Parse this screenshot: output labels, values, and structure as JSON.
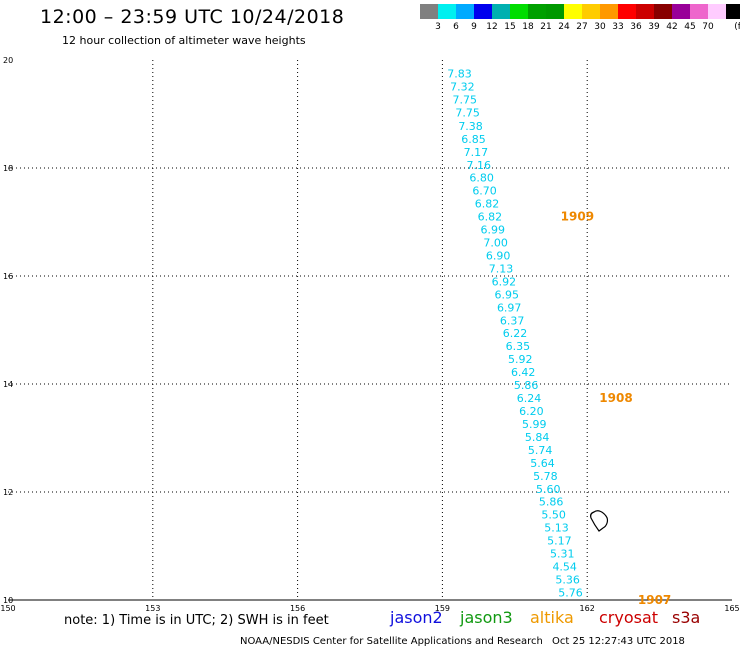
{
  "title": "12:00 – 23:59 UTC 10/24/2018",
  "subtitle": "12 hour collection of altimeter wave heights",
  "colorbar": {
    "labels": [
      "3",
      "6",
      "9",
      "12",
      "15",
      "18",
      "21",
      "24",
      "27",
      "30",
      "33",
      "36",
      "39",
      "42",
      "45",
      "70"
    ],
    "unit": "(ft)",
    "colors": [
      "#808080",
      "#00f0f0",
      "#00aaff",
      "#0000ee",
      "#00b0b0",
      "#00dd00",
      "#00a000",
      "#009900",
      "#ffff00",
      "#ffcc00",
      "#ff9900",
      "#ff0000",
      "#cc0000",
      "#880000",
      "#990099",
      "#ee66cc",
      "#ffccff",
      "#000000"
    ]
  },
  "map_data": {
    "lon_range": [
      150,
      165
    ],
    "lat_range": [
      10,
      20
    ],
    "lon_ticks": [
      "150",
      "153",
      "156",
      "159",
      "162",
      "165"
    ],
    "lat_ticks": [
      "10",
      "12",
      "14",
      "16",
      "18",
      "20"
    ],
    "swh_color": "#00ccee",
    "swh_points": [
      {
        "lon": 159.1,
        "lat": 19.75,
        "v": "7.83"
      },
      {
        "lon": 159.16,
        "lat": 19.51,
        "v": "7.32"
      },
      {
        "lon": 159.21,
        "lat": 19.27,
        "v": "7.75"
      },
      {
        "lon": 159.27,
        "lat": 19.03,
        "v": "7.75"
      },
      {
        "lon": 159.33,
        "lat": 18.78,
        "v": "7.38"
      },
      {
        "lon": 159.39,
        "lat": 18.54,
        "v": "6.85"
      },
      {
        "lon": 159.44,
        "lat": 18.3,
        "v": "7.17"
      },
      {
        "lon": 159.5,
        "lat": 18.06,
        "v": "7.16"
      },
      {
        "lon": 159.56,
        "lat": 17.82,
        "v": "6.80"
      },
      {
        "lon": 159.62,
        "lat": 17.58,
        "v": "6.70"
      },
      {
        "lon": 159.67,
        "lat": 17.34,
        "v": "6.82"
      },
      {
        "lon": 159.73,
        "lat": 17.1,
        "v": "6.82"
      },
      {
        "lon": 159.79,
        "lat": 16.86,
        "v": "6.99"
      },
      {
        "lon": 159.85,
        "lat": 16.62,
        "v": "7.00"
      },
      {
        "lon": 159.9,
        "lat": 16.38,
        "v": "6.90"
      },
      {
        "lon": 159.96,
        "lat": 16.14,
        "v": "7.13"
      },
      {
        "lon": 160.02,
        "lat": 15.9,
        "v": "6.92"
      },
      {
        "lon": 160.08,
        "lat": 15.66,
        "v": "6.95"
      },
      {
        "lon": 160.13,
        "lat": 15.42,
        "v": "6.97"
      },
      {
        "lon": 160.19,
        "lat": 15.18,
        "v": "6.37"
      },
      {
        "lon": 160.25,
        "lat": 14.94,
        "v": "6.22"
      },
      {
        "lon": 160.31,
        "lat": 14.7,
        "v": "6.35"
      },
      {
        "lon": 160.36,
        "lat": 14.46,
        "v": "5.92"
      },
      {
        "lon": 160.42,
        "lat": 14.22,
        "v": "6.42"
      },
      {
        "lon": 160.48,
        "lat": 13.98,
        "v": "5.86"
      },
      {
        "lon": 160.54,
        "lat": 13.74,
        "v": "6.24"
      },
      {
        "lon": 160.59,
        "lat": 13.5,
        "v": "6.20"
      },
      {
        "lon": 160.65,
        "lat": 13.26,
        "v": "5.99"
      },
      {
        "lon": 160.71,
        "lat": 13.02,
        "v": "5.84"
      },
      {
        "lon": 160.77,
        "lat": 12.78,
        "v": "5.74"
      },
      {
        "lon": 160.82,
        "lat": 12.54,
        "v": "5.64"
      },
      {
        "lon": 160.88,
        "lat": 12.3,
        "v": "5.78"
      },
      {
        "lon": 160.94,
        "lat": 12.06,
        "v": "5.60"
      },
      {
        "lon": 161.0,
        "lat": 11.82,
        "v": "5.86"
      },
      {
        "lon": 161.05,
        "lat": 11.58,
        "v": "5.50"
      },
      {
        "lon": 161.11,
        "lat": 11.34,
        "v": "5.13"
      },
      {
        "lon": 161.17,
        "lat": 11.1,
        "v": "5.17"
      },
      {
        "lon": 161.23,
        "lat": 10.86,
        "v": "5.31"
      },
      {
        "lon": 161.28,
        "lat": 10.62,
        "v": "4.54"
      },
      {
        "lon": 161.34,
        "lat": 10.38,
        "v": "5.36"
      },
      {
        "lon": 161.4,
        "lat": 10.14,
        "v": "5.76"
      }
    ],
    "time_color": "#ee8800",
    "time_labels": [
      {
        "lon": 161.45,
        "lat": 17.1,
        "v": "1909"
      },
      {
        "lon": 162.25,
        "lat": 13.74,
        "v": "1908"
      },
      {
        "lon": 163.05,
        "lat": 10.0,
        "v": "1907"
      }
    ],
    "island_outline": "coastline"
  },
  "note": "note:  1) Time is in UTC;  2) SWH is in feet",
  "legend": [
    {
      "name": "jason2",
      "color": "#1010dd"
    },
    {
      "name": "jason3",
      "color": "#119911"
    },
    {
      "name": "altika",
      "color": "#ee9900"
    },
    {
      "name": "cryosat",
      "color": "#cc0000"
    },
    {
      "name": "s3a",
      "color": "#990000"
    }
  ],
  "credit": "NOAA/NESDIS Center for Satellite Applications and Research",
  "timestamp": "Oct 25 12:27:43 UTC 2018"
}
